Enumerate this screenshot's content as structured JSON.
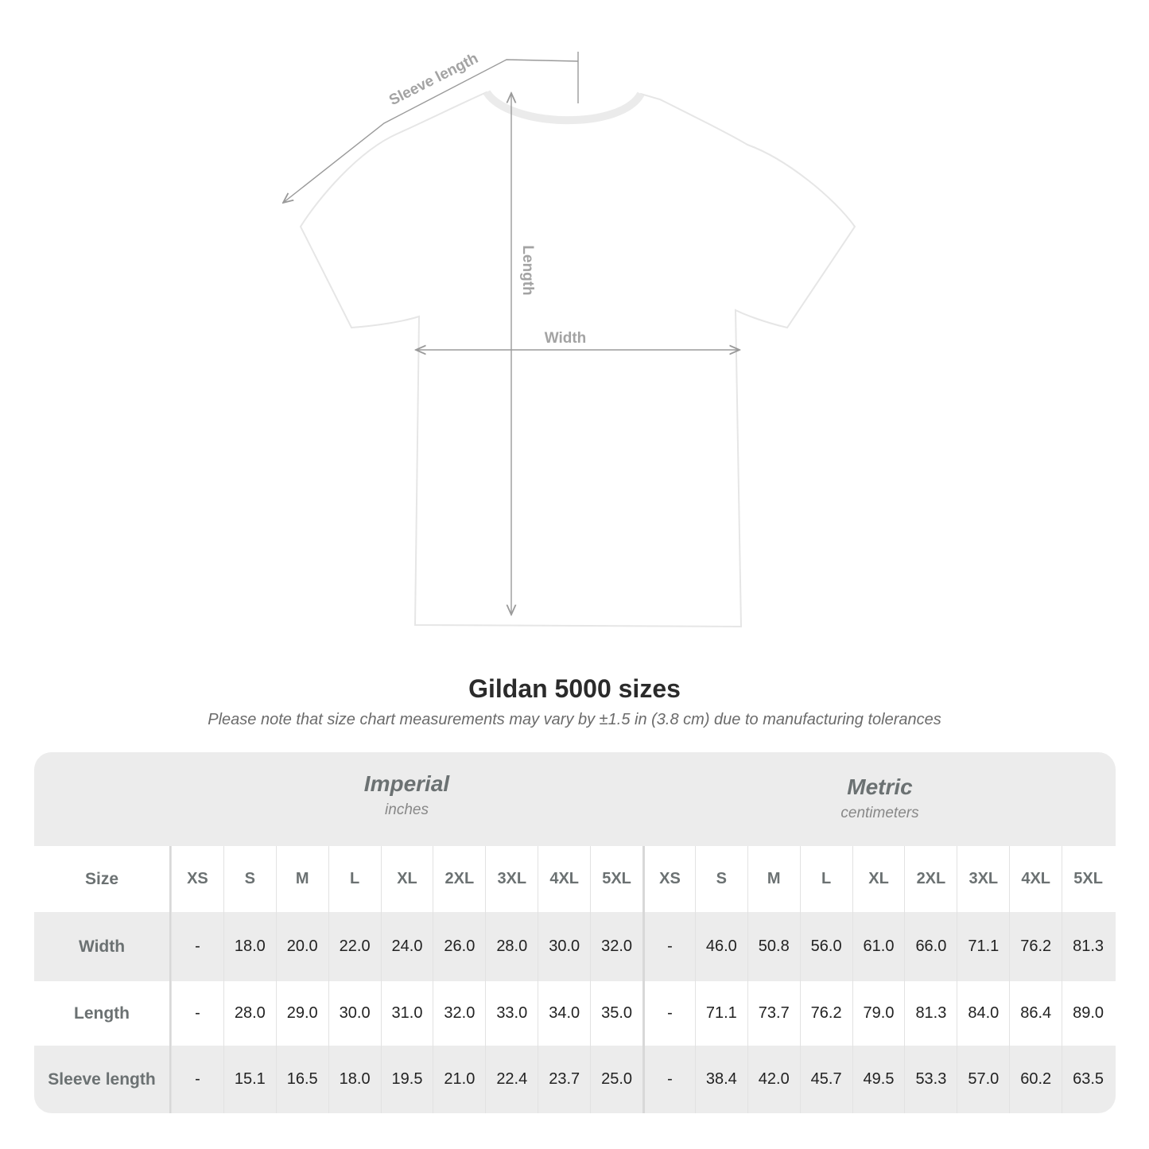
{
  "diagram": {
    "labels": {
      "sleeve": "Sleeve length",
      "length": "Length",
      "width": "Width"
    },
    "colors": {
      "line": "#9a9a9a",
      "shirt": "#ffffff",
      "shirt_outline": "#e4e4e4"
    }
  },
  "title": "Gildan 5000 sizes",
  "subtitle": "Please note that size chart measurements may vary by ±1.5 in (3.8 cm) due to manufacturing tolerances",
  "table": {
    "imperial": {
      "name": "Imperial",
      "unit": "inches"
    },
    "metric": {
      "name": "Metric",
      "unit": "centimeters"
    },
    "size_label": "Size",
    "sizes": [
      "XS",
      "S",
      "M",
      "L",
      "XL",
      "2XL",
      "3XL",
      "4XL",
      "5XL"
    ],
    "rows": [
      {
        "label": "Width",
        "imperial": [
          "-",
          "18.0",
          "20.0",
          "22.0",
          "24.0",
          "26.0",
          "28.0",
          "30.0",
          "32.0"
        ],
        "metric": [
          "-",
          "46.0",
          "50.8",
          "56.0",
          "61.0",
          "66.0",
          "71.1",
          "76.2",
          "81.3"
        ]
      },
      {
        "label": "Length",
        "imperial": [
          "-",
          "28.0",
          "29.0",
          "30.0",
          "31.0",
          "32.0",
          "33.0",
          "34.0",
          "35.0"
        ],
        "metric": [
          "-",
          "71.1",
          "73.7",
          "76.2",
          "79.0",
          "81.3",
          "84.0",
          "86.4",
          "89.0"
        ]
      },
      {
        "label": "Sleeve length",
        "imperial": [
          "-",
          "15.1",
          "16.5",
          "18.0",
          "19.5",
          "21.0",
          "22.4",
          "23.7",
          "25.0"
        ],
        "metric": [
          "-",
          "38.4",
          "42.0",
          "45.7",
          "49.5",
          "53.3",
          "57.0",
          "60.2",
          "63.5"
        ]
      }
    ]
  }
}
